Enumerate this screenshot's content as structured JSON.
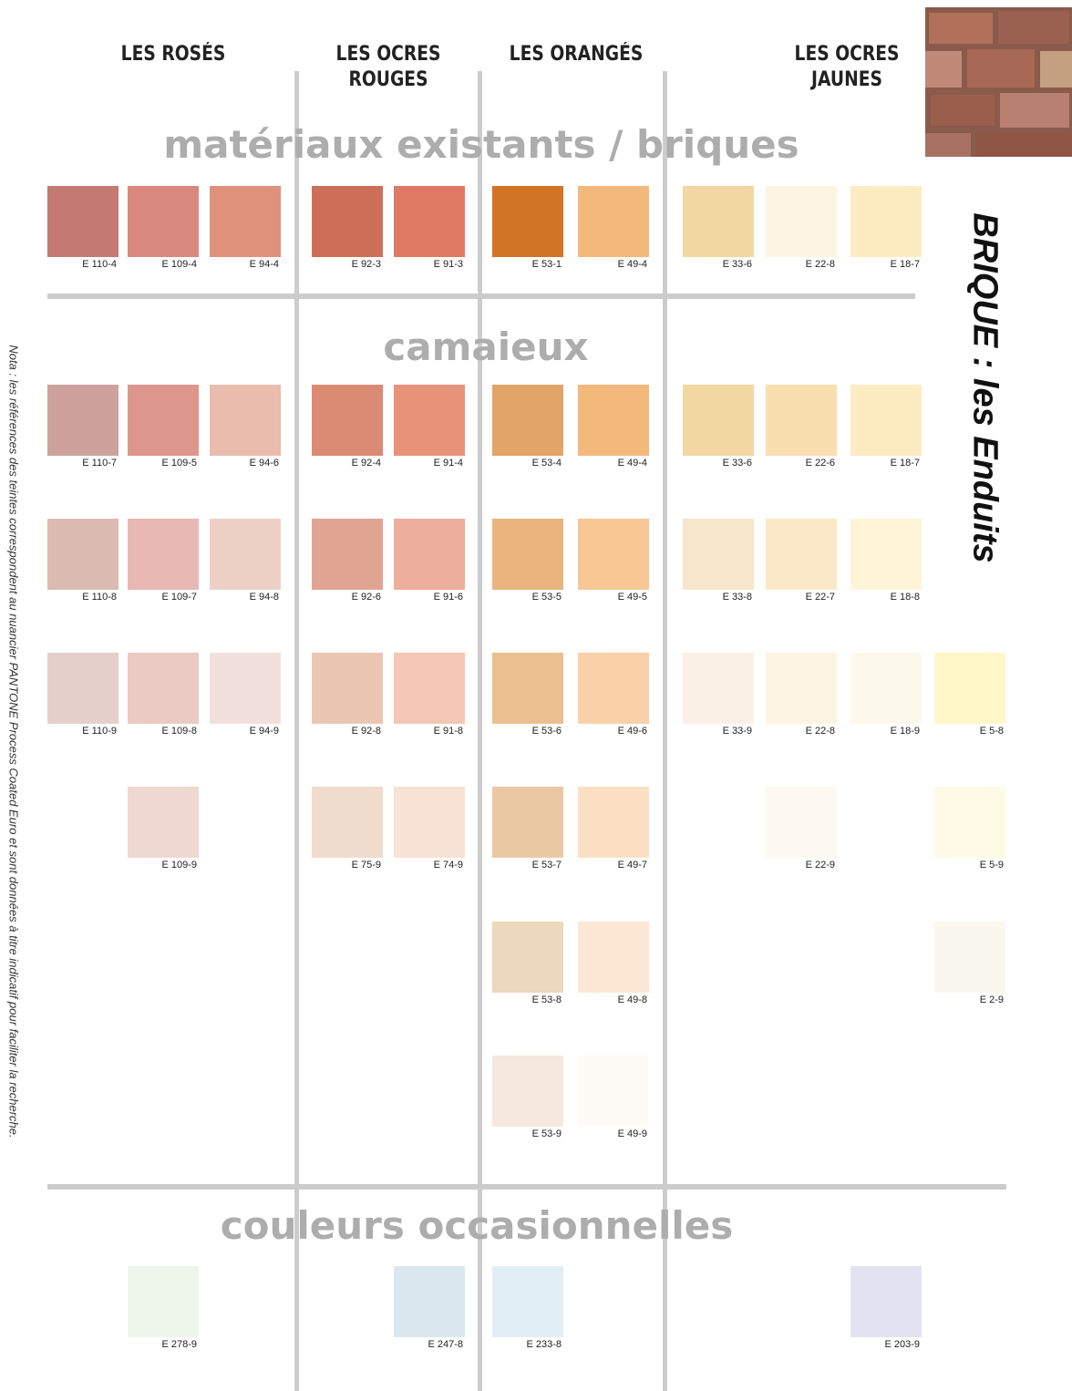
{
  "header": {
    "columns": [
      {
        "lines": [
          "LES ROSÉS"
        ]
      },
      {
        "lines": [
          "LES OCRES",
          "ROUGES"
        ]
      },
      {
        "lines": [
          "LES ORANGÉS"
        ]
      },
      {
        "lines": [
          "LES OCRES",
          "JAUNES"
        ]
      }
    ]
  },
  "side_title": "BRIQUE : les Enduits",
  "note": "Nota : les références des teintes correspondent au nuancier PANTONE Process Coated Euro et sont données à titre indicatif pour faciliter la recherche.",
  "sections": [
    {
      "title": "matériaux existants / briques",
      "rows": [
        [
          {
            "label": "E 110-4",
            "color": "#c27a72"
          },
          {
            "label": "E 109-4",
            "color": "#d98880"
          },
          {
            "label": "E 94-4",
            "color": "#e0917c"
          },
          {
            "label": "E 92-3",
            "color": "#cc6e58"
          },
          {
            "label": "E 91-3",
            "color": "#e07a64"
          },
          {
            "label": "E 53-1",
            "color": "#d27425"
          },
          {
            "label": "E 49-4",
            "color": "#f2b87c"
          },
          {
            "label": "E 33-6",
            "color": "#f3d7a2"
          },
          {
            "label": "E 22-8",
            "color": "#fdf5e2"
          },
          {
            "label": "E 18-7",
            "color": "#fdebc2"
          },
          null
        ]
      ]
    },
    {
      "title": "camaieux",
      "rows": [
        [
          {
            "label": "E 110-7",
            "color": "#cea29c"
          },
          {
            "label": "E 109-5",
            "color": "#dc968c"
          },
          {
            "label": "E 94-6",
            "color": "#e9bcae"
          },
          {
            "label": "E 92-4",
            "color": "#db8a74"
          },
          {
            "label": "E 91-4",
            "color": "#e8927a"
          },
          {
            "label": "E 53-4",
            "color": "#e3a468"
          },
          {
            "label": "E 49-4",
            "color": "#f3b87c"
          },
          {
            "label": "E 33-6",
            "color": "#f3d7a2"
          },
          {
            "label": "E 22-6",
            "color": "#f8dfb0"
          },
          {
            "label": "E 18-7",
            "color": "#fdebc2"
          },
          null
        ],
        [
          {
            "label": "E 110-8",
            "color": "#dbbab2"
          },
          {
            "label": "E 109-7",
            "color": "#e8b8b2"
          },
          {
            "label": "E 94-8",
            "color": "#ecd0c6"
          },
          {
            "label": "E 92-6",
            "color": "#e2a492"
          },
          {
            "label": "E 91-6",
            "color": "#edae9c"
          },
          {
            "label": "E 53-5",
            "color": "#e9b47e"
          },
          {
            "label": "E 49-5",
            "color": "#f7c794"
          },
          {
            "label": "E 33-8",
            "color": "#f7e6cc"
          },
          {
            "label": "E 22-7",
            "color": "#fbe8c8"
          },
          {
            "label": "E 18-8",
            "color": "#fef4d8"
          },
          null
        ],
        [
          {
            "label": "E 110-9",
            "color": "#e6d0cc"
          },
          {
            "label": "E 109-8",
            "color": "#eacac2"
          },
          {
            "label": "E 94-9",
            "color": "#f1e0dc"
          },
          {
            "label": "E 92-8",
            "color": "#ebc6b2"
          },
          {
            "label": "E 91-8",
            "color": "#f4c6b4"
          },
          {
            "label": "E 53-6",
            "color": "#e9c08e"
          },
          {
            "label": "E 49-6",
            "color": "#f9d0a8"
          },
          {
            "label": "E 33-9",
            "color": "#faf0e6"
          },
          {
            "label": "E 22-8",
            "color": "#fdf5e2"
          },
          {
            "label": "E 18-9",
            "color": "#fdf8ec"
          },
          {
            "label": "E 5-8",
            "color": "#fef8c8"
          }
        ],
        [
          null,
          {
            "label": "E 109-9",
            "color": "#eed8d0"
          },
          null,
          {
            "label": "E 75-9",
            "color": "#efdccd"
          },
          {
            "label": "E 74-9",
            "color": "#f8e2d4"
          },
          {
            "label": "E 53-7",
            "color": "#ebc8a4"
          },
          {
            "label": "E 49-7",
            "color": "#fbe0c4"
          },
          null,
          {
            "label": "E 22-9",
            "color": "#fef9f0"
          },
          null,
          {
            "label": "E 5-9",
            "color": "#fefae6"
          }
        ],
        [
          null,
          null,
          null,
          null,
          null,
          {
            "label": "E 53-8",
            "color": "#ecd8bc"
          },
          {
            "label": "E 49-8",
            "color": "#fce8d4"
          },
          null,
          null,
          null,
          {
            "label": "E 2-9",
            "color": "#faf8ee"
          }
        ],
        [
          null,
          null,
          null,
          null,
          null,
          {
            "label": "E 53-9",
            "color": "#f6e8de"
          },
          {
            "label": "E 49-9",
            "color": "#fefaf6"
          },
          null,
          null,
          null,
          null
        ]
      ]
    },
    {
      "title": "couleurs occasionnelles",
      "rows": [
        [
          null,
          {
            "label": "E 278-9",
            "color": "#eef6ec"
          },
          null,
          null,
          {
            "label": "E 247-8",
            "color": "#d8e8ee"
          },
          {
            "label": "E 233-8",
            "color": "#e2eef6"
          },
          null,
          null,
          null,
          {
            "label": "E 203-9",
            "color": "#e2e2f0"
          },
          null
        ]
      ]
    }
  ]
}
